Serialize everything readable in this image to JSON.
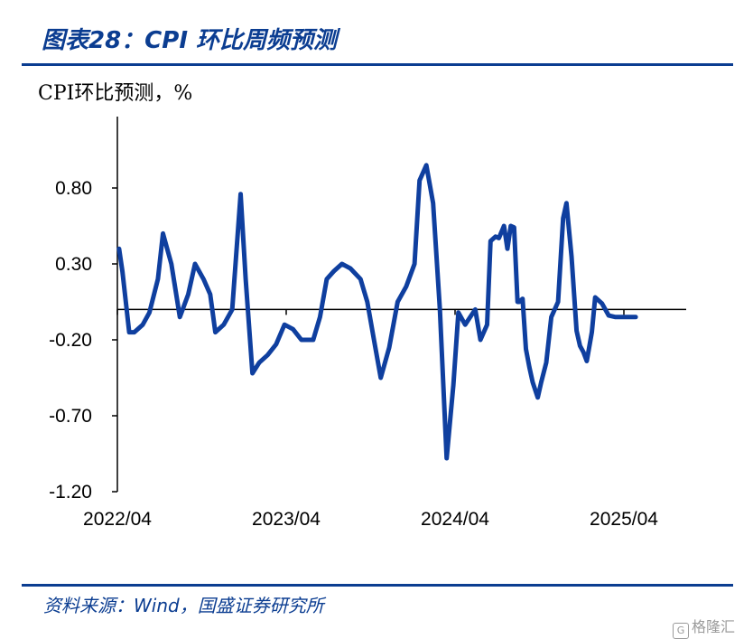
{
  "header": {
    "title": "图表28：CPI 环比周频预测"
  },
  "footer": {
    "source": "资料来源：Wind，国盛证券研究所"
  },
  "watermark": {
    "text": "格隆汇",
    "icon": "G"
  },
  "colors": {
    "accent": "#0b3d91",
    "line": "#0f3f9f",
    "axis": "#000000"
  },
  "chart_data": {
    "type": "line",
    "ylabel": "CPI环比预测，%",
    "ylim": [
      -1.2,
      1.3
    ],
    "yticks": [
      0.8,
      0.3,
      -0.2,
      -0.7,
      -1.2
    ],
    "ytick_labels": [
      "0.80",
      "0.30",
      "-0.20",
      "-0.70",
      "-1.20"
    ],
    "xlim": [
      2022.25,
      2025.5
    ],
    "xticks": [
      2022.25,
      2023.25,
      2024.25,
      2025.25
    ],
    "xtick_labels": [
      "2022/04",
      "2023/04",
      "2024/04",
      "2025/04"
    ],
    "grid": false,
    "zero_line": true,
    "series": [
      {
        "x": [
          2022.26,
          2022.28,
          2022.32,
          2022.35,
          2022.4,
          2022.44,
          2022.49,
          2022.52,
          2022.57,
          2022.62,
          2022.67,
          2022.71,
          2022.76,
          2022.8,
          2022.83,
          2022.88,
          2022.93,
          2022.98,
          2023.01,
          2023.05,
          2023.09,
          2023.14,
          2023.19,
          2023.24,
          2023.29,
          2023.34,
          2023.37,
          2023.41,
          2023.45,
          2023.49,
          2023.53,
          2023.58,
          2023.63,
          2023.69,
          2023.73,
          2023.77,
          2023.81,
          2023.86,
          2023.91,
          2023.96,
          2024.01,
          2024.04,
          2024.08,
          2024.12,
          2024.16,
          2024.2,
          2024.24,
          2024.27,
          2024.31,
          2024.34,
          2024.37,
          2024.4,
          2024.44,
          2024.46,
          2024.49,
          2024.51,
          2024.54,
          2024.56,
          2024.58,
          2024.6,
          2024.62,
          2024.63,
          2024.64,
          2024.65,
          2024.67,
          2024.69,
          2024.71,
          2024.74,
          2024.76,
          2024.79,
          2024.82,
          2024.86,
          2024.89,
          2024.91,
          2024.94,
          2024.97,
          2024.99,
          2025.01,
          2025.03,
          2025.06,
          2025.08,
          2025.12,
          2025.16,
          2025.2,
          2025.22,
          2025.24,
          2025.27,
          2025.3,
          2025.32
        ],
        "y": [
          0.4,
          0.25,
          -0.15,
          -0.15,
          -0.1,
          -0.02,
          0.2,
          0.5,
          0.3,
          -0.05,
          0.1,
          0.3,
          0.2,
          0.1,
          -0.15,
          -0.1,
          0.0,
          0.76,
          0.2,
          -0.42,
          -0.35,
          -0.3,
          -0.23,
          -0.1,
          -0.13,
          -0.2,
          -0.2,
          -0.2,
          -0.05,
          0.2,
          0.25,
          0.3,
          0.27,
          0.2,
          0.05,
          -0.2,
          -0.45,
          -0.25,
          0.05,
          0.15,
          0.3,
          0.85,
          0.95,
          0.7,
          0.0,
          -0.98,
          -0.5,
          -0.02,
          -0.1,
          -0.05,
          0.0,
          -0.2,
          -0.1,
          0.45,
          0.48,
          0.47,
          0.55,
          0.4,
          0.55,
          0.54,
          0.05,
          0.05,
          0.06,
          0.07,
          -0.26,
          -0.38,
          -0.48,
          -0.58,
          -0.48,
          -0.35,
          -0.05,
          0.05,
          0.6,
          0.7,
          0.35,
          -0.14,
          -0.24,
          -0.28,
          -0.34,
          -0.15,
          0.08,
          0.04,
          -0.04,
          -0.05,
          -0.05,
          -0.05,
          -0.05,
          -0.05,
          -0.05
        ]
      }
    ]
  }
}
